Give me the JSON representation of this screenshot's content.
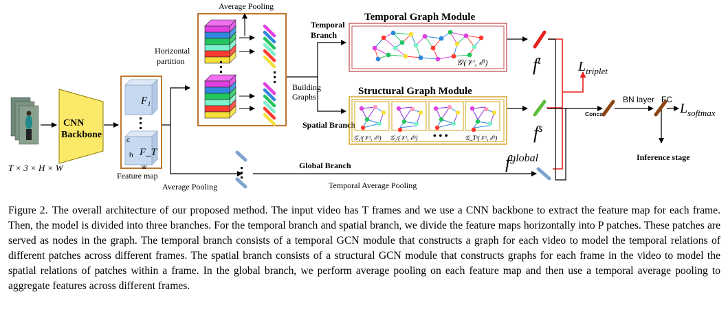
{
  "diagram": {
    "input_label": "T × 3 × H × W",
    "cnn_backbone": [
      "CNN",
      "Backbone"
    ],
    "feature_map_label": "Feature map",
    "f1_label": "F₁",
    "ft_label": "F_T",
    "chw": [
      "c",
      "h",
      "w"
    ],
    "horizontal_partition": [
      "Horizontal",
      "partition"
    ],
    "average_pooling_top": "Average Pooling",
    "average_pooling_bottom": "Average  Pooling",
    "building_graphs": [
      "Building",
      "Graphs"
    ],
    "temporal_branch": [
      "Temporal",
      "Branch"
    ],
    "temporal_module_title": "Temporal  Graph Module",
    "temporal_graph_label": "𝒢ᵗ(𝒱ᵗ, ℰᵗ)",
    "structural_module_title": "Structural Graph Module",
    "spatial_branch": "Spatial Branch",
    "spatial_graph_labels": [
      "𝒢₁ˢ(𝒱ˢ, ℰˢ)",
      "𝒢₂ˢ(𝒱ˢ, ℰˢ)",
      "𝒢_Tˢ(𝒱ˢ, ℰˢ)"
    ],
    "ellipsis": "• • •",
    "global_branch": "Global Branch",
    "temporal_average_pooling": "Temporal Average  Pooling",
    "f_t": "f",
    "f_t_sup": "t",
    "f_s": "f",
    "f_s_sup": "s",
    "f_global": "f",
    "f_global_sup": "global",
    "l_triplet": "L",
    "l_triplet_sub": "triplet",
    "l_softmax": "L",
    "l_softmax_sub": "softmax",
    "concat": "Concat",
    "bn_layer": "BN layer",
    "fc": "FC",
    "inference_stage": "Inference stage",
    "colors": {
      "temporal_box": "#c0504d",
      "spatial_box": "#d4a017",
      "feature_box": "#c07830",
      "arrow_red": "#e8201c",
      "feature_cube": "#c6d9f1"
    }
  },
  "caption": {
    "label": "Figure 2.",
    "text": "The overall architecture of our proposed method. The input video has T frames and we use a CNN backbone to extract the feature map for each frame. Then, the model is divided into three branches. For the temporal branch and spatial branch, we divide the feature maps horizontally into P patches. These patches are served as nodes in the graph. The temporal branch consists of a temporal GCN module that constructs a graph for each video to model the temporal relations of different patches across different frames. The spatial branch consists of a structural GCN module that constructs graphs for each frame in the video to model the spatial relations of patches within a frame. In the global branch, we perform average pooling on each feature map and then use a temporal average pooling to aggregate features across different frames."
  }
}
